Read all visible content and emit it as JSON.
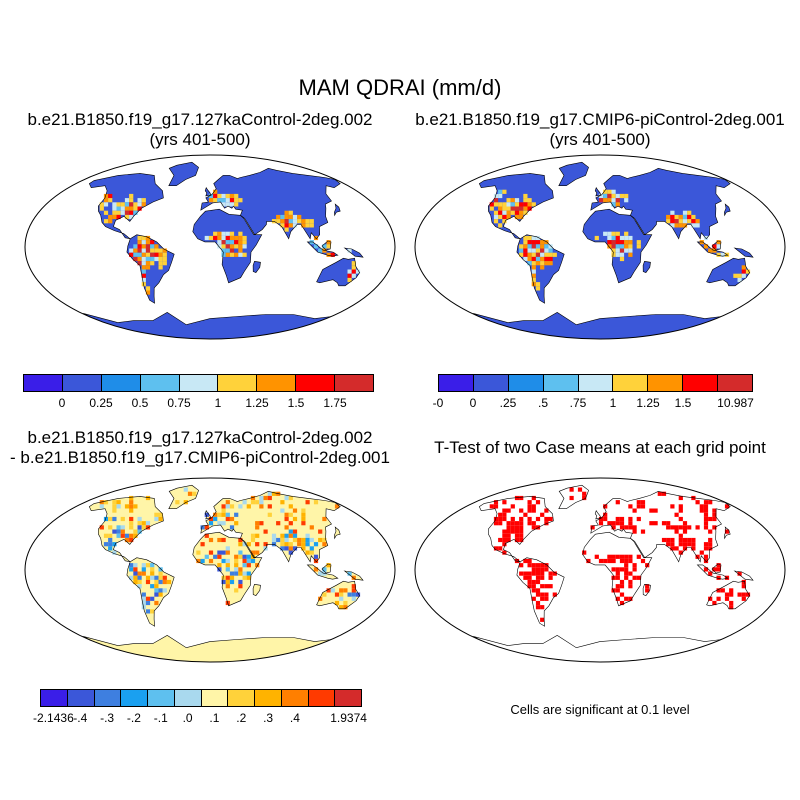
{
  "figure": {
    "title": "MAM QDRAI (mm/d)"
  },
  "panels": [
    {
      "title_line1": "b.e21.B1850.f19_g17.127kaControl-2deg.002",
      "title_line2": "(yrs 401-500)",
      "palette": "abs",
      "colorbar": {
        "colors": [
          "#3a1ee8",
          "#3b57d9",
          "#1f8de8",
          "#5ec0ef",
          "#c8e8f5",
          "#ffd23a",
          "#ff9300",
          "#ff0000",
          "#d42b2b"
        ],
        "labels": [
          "0",
          "0.25",
          "0.5",
          "0.75",
          "1",
          "1.25",
          "1.5",
          "1.75"
        ]
      }
    },
    {
      "title_line1": "b.e21.B1850.f19_g17.CMIP6-piControl-2deg.001",
      "title_line2": "(yrs 401-500)",
      "palette": "abs",
      "colorbar": {
        "colors": [
          "#3a1ee8",
          "#3b57d9",
          "#1f8de8",
          "#5ec0ef",
          "#c8e8f5",
          "#ffd23a",
          "#ff9300",
          "#ff0000",
          "#d42b2b"
        ],
        "labels": [
          "-0",
          "0",
          ".25",
          ".5",
          ".75",
          "1",
          "1.25",
          "1.5",
          "10.987"
        ]
      }
    },
    {
      "title_line1": "b.e21.B1850.f19_g17.127kaControl-2deg.002",
      "title_line2": "- b.e21.B1850.f19_g17.CMIP6-piControl-2deg.001",
      "palette": "diff",
      "colorbar": {
        "colors": [
          "#3a1ee8",
          "#3b57d9",
          "#3e7fe0",
          "#1aa0f0",
          "#5ec0ef",
          "#a9d9ee",
          "#fff5a8",
          "#ffd23a",
          "#ffb300",
          "#ff7f00",
          "#ff3a00",
          "#d42b2b"
        ],
        "labels": [
          "-2.1436",
          "-.4",
          "-.3",
          "-.2",
          "-.1",
          ".0",
          ".1",
          ".2",
          ".3",
          ".4",
          "1.9374"
        ]
      }
    },
    {
      "title_line1": "T-Test of two Case means at each grid point",
      "palette": "sig",
      "note": "Cells are significant at 0.1 level"
    }
  ]
}
